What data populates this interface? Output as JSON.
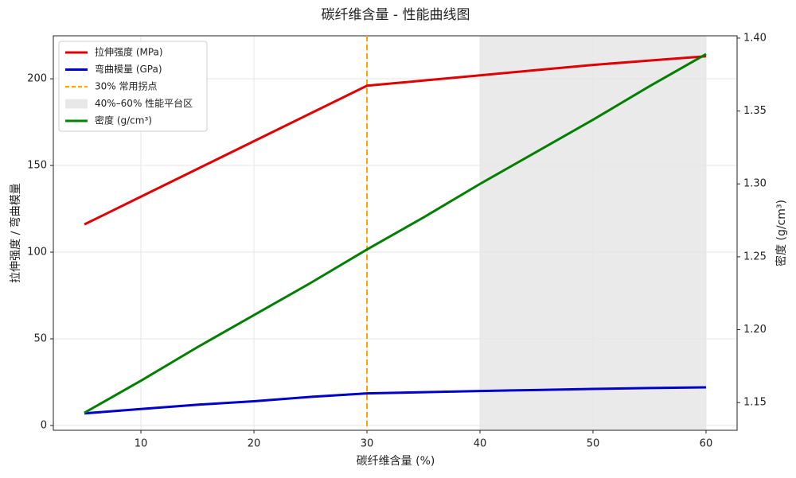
{
  "chart_data": {
    "type": "line",
    "title": "碳纤维含量 - 性能曲线图",
    "xlabel": "碳纤维含量 (%)",
    "ylabel": "拉伸强度 / 弯曲模量",
    "y2label": "密度 (g/cm³)",
    "x": [
      5,
      10,
      15,
      20,
      25,
      30,
      35,
      40,
      45,
      50,
      55,
      60
    ],
    "series": [
      {
        "name": "拉伸强度 (MPa)",
        "color": "#e00000",
        "values": [
          116,
          132,
          148,
          164,
          180,
          196,
          199,
          202,
          205,
          208,
          210.5,
          213
        ]
      },
      {
        "name": "弯曲模量 (GPa)",
        "color": "#0000cc",
        "values": [
          7,
          9.5,
          12,
          14,
          16.5,
          18.5,
          19.2,
          19.9,
          20.5,
          21.1,
          21.6,
          22
        ]
      },
      {
        "name": "密度 (g/cm³)",
        "color": "#007f00",
        "axis": "y2",
        "values": [
          1.143,
          1.165,
          1.188,
          1.21,
          1.232,
          1.255,
          1.277,
          1.3,
          1.322,
          1.344,
          1.367,
          1.389
        ]
      }
    ],
    "vline": {
      "x": 30,
      "label": "30% 常用拐点",
      "color": "#ffa500"
    },
    "span": {
      "x": [
        40,
        60
      ],
      "label": "40%–60% 性能平台区",
      "color": "#d9d9d9"
    },
    "xlim": [
      2.25,
      62.75
    ],
    "xticks": [
      10,
      20,
      30,
      40,
      50,
      60
    ],
    "ylim": [
      -2.75,
      224.8
    ],
    "yticks": [
      0,
      50,
      100,
      150,
      200
    ],
    "y2lim": [
      1.131,
      1.4016
    ],
    "y2ticks": [
      1.15,
      {
        "value": 1.2,
        "label": "1.20"
      },
      1.25,
      {
        "value": 1.3,
        "label": "1.30"
      },
      1.35,
      {
        "value": 1.4,
        "label": "1.40"
      }
    ],
    "grid": true,
    "legend": "upper-left"
  }
}
